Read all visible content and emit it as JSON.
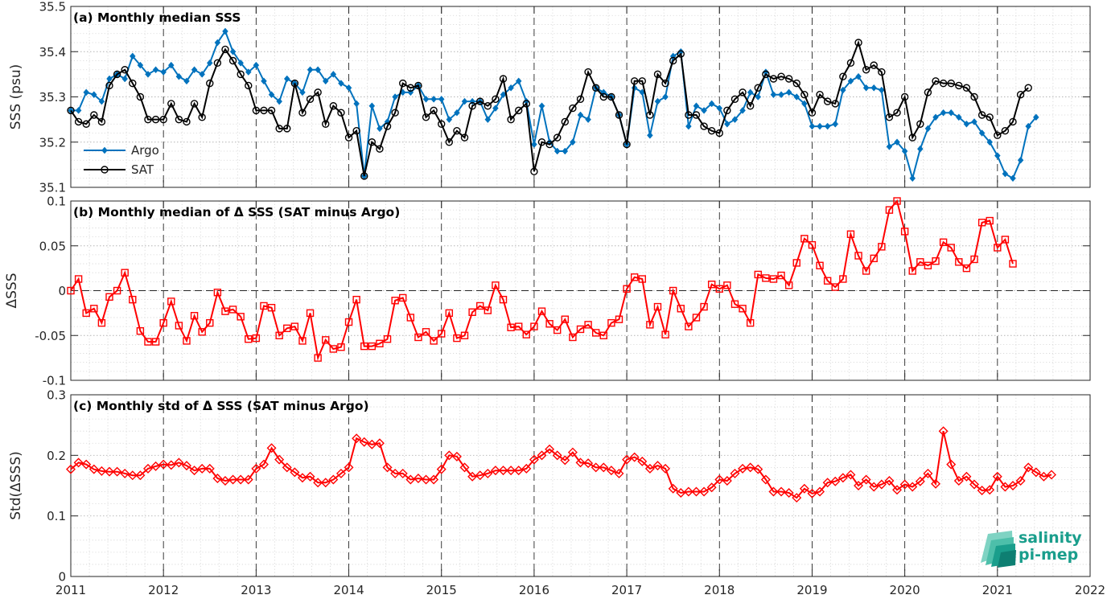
{
  "chart_data": [
    {
      "type": "line",
      "title": "(a) Monthly median SSS",
      "ylabel": "SSS (psu)",
      "ylim": [
        35.1,
        35.5
      ],
      "yticks": [
        35.1,
        35.2,
        35.3,
        35.4,
        35.5
      ],
      "xlim": [
        2011,
        2022
      ],
      "xticks": [
        2011,
        2012,
        2013,
        2014,
        2015,
        2016,
        2017,
        2018,
        2019,
        2020,
        2021,
        2022
      ],
      "grid": true,
      "legend_position": "middle-left",
      "x_start": 2011.0,
      "x_step": 0.0833333,
      "series": [
        {
          "name": "Argo",
          "color": "#0072BD",
          "marker": "diamond",
          "values": [
            35.27,
            35.27,
            35.31,
            35.305,
            35.29,
            35.34,
            35.35,
            35.34,
            35.39,
            35.37,
            35.35,
            35.36,
            35.355,
            35.37,
            35.345,
            35.335,
            35.36,
            35.35,
            35.375,
            35.42,
            35.445,
            35.4,
            35.375,
            35.355,
            35.37,
            35.335,
            35.305,
            35.29,
            35.34,
            35.33,
            35.31,
            35.36,
            35.36,
            35.335,
            35.35,
            35.33,
            35.32,
            35.285,
            35.125,
            35.28,
            35.23,
            35.245,
            35.3,
            35.31,
            35.31,
            35.325,
            35.295,
            35.295,
            35.295,
            35.25,
            35.265,
            35.29,
            35.29,
            35.29,
            35.25,
            35.275,
            35.305,
            35.32,
            35.335,
            35.29,
            35.195,
            35.28,
            35.2,
            35.18,
            35.18,
            35.2,
            35.26,
            35.25,
            35.32,
            35.31,
            35.3,
            35.26,
            35.195,
            35.32,
            35.31,
            35.215,
            35.29,
            35.3,
            35.39,
            35.4,
            35.235,
            35.28,
            35.27,
            35.285,
            35.275,
            35.24,
            35.25,
            35.27,
            35.31,
            35.3,
            35.355,
            35.305,
            35.305,
            35.31,
            35.3,
            35.285,
            35.235,
            35.235,
            35.235,
            35.24,
            35.315,
            35.335,
            35.345,
            35.32,
            35.32,
            35.315,
            35.19,
            35.2,
            35.18,
            35.12,
            35.185,
            35.23,
            35.255,
            35.265,
            35.265,
            35.255,
            35.24,
            35.245,
            35.22,
            35.2,
            35.17,
            35.13,
            35.12,
            35.16,
            35.235,
            35.255
          ]
        },
        {
          "name": "SAT",
          "color": "#000000",
          "marker": "circle",
          "values": [
            35.27,
            35.245,
            35.24,
            35.26,
            35.245,
            35.325,
            35.35,
            35.36,
            35.33,
            35.3,
            35.25,
            35.25,
            35.25,
            35.285,
            35.25,
            35.245,
            35.285,
            35.255,
            35.33,
            35.375,
            35.405,
            35.38,
            35.35,
            35.325,
            35.27,
            35.27,
            35.27,
            35.23,
            35.23,
            35.33,
            35.265,
            35.295,
            35.31,
            35.24,
            35.28,
            35.265,
            35.21,
            35.225,
            35.125,
            35.2,
            35.185,
            35.235,
            35.265,
            35.33,
            35.32,
            35.325,
            35.255,
            35.27,
            35.24,
            35.2,
            35.225,
            35.21,
            35.28,
            35.29,
            35.28,
            35.295,
            35.34,
            35.25,
            35.27,
            35.285,
            35.135,
            35.2,
            35.195,
            35.21,
            35.245,
            35.275,
            35.295,
            35.355,
            35.32,
            35.3,
            35.3,
            35.26,
            35.195,
            35.335,
            35.335,
            35.26,
            35.35,
            35.33,
            35.38,
            35.395,
            35.26,
            35.26,
            35.235,
            35.225,
            35.22,
            35.27,
            35.295,
            35.31,
            35.28,
            35.32,
            35.35,
            35.34,
            35.345,
            35.34,
            35.33,
            35.305,
            35.265,
            35.305,
            35.29,
            35.285,
            35.345,
            35.375,
            35.42,
            35.36,
            35.37,
            35.355,
            35.255,
            35.265,
            35.3,
            35.21,
            35.24,
            35.31,
            35.335,
            35.33,
            35.33,
            35.325,
            35.32,
            35.3,
            35.26,
            35.255,
            35.215,
            35.225,
            35.245,
            35.305,
            35.32
          ]
        }
      ]
    },
    {
      "type": "line",
      "title": "(b) Monthly median of Δ SSS (SAT minus Argo)",
      "ylabel": "ΔSSS",
      "ylim": [
        -0.1,
        0.1
      ],
      "yticks": [
        -0.1,
        -0.05,
        0,
        0.05,
        0.1
      ],
      "ytick_labels": [
        "-0.1",
        "-0.05",
        "0",
        "0.05",
        "0.1"
      ],
      "xlim": [
        2011,
        2022
      ],
      "grid": true,
      "zero_line": true,
      "x_start": 2011.0,
      "x_step": 0.0833333,
      "series": [
        {
          "color": "#FF0000",
          "marker": "square",
          "values": [
            0.0,
            0.013,
            -0.025,
            -0.02,
            -0.036,
            -0.007,
            0.0,
            0.02,
            -0.01,
            -0.045,
            -0.057,
            -0.057,
            -0.036,
            -0.012,
            -0.039,
            -0.056,
            -0.028,
            -0.046,
            -0.036,
            -0.002,
            -0.023,
            -0.021,
            -0.029,
            -0.054,
            -0.053,
            -0.017,
            -0.019,
            -0.05,
            -0.042,
            -0.04,
            -0.056,
            -0.025,
            -0.075,
            -0.055,
            -0.065,
            -0.063,
            -0.035,
            -0.01,
            -0.062,
            -0.062,
            -0.059,
            -0.054,
            -0.011,
            -0.008,
            -0.03,
            -0.052,
            -0.046,
            -0.056,
            -0.048,
            -0.025,
            -0.053,
            -0.05,
            -0.024,
            -0.017,
            -0.022,
            0.006,
            -0.01,
            -0.041,
            -0.04,
            -0.049,
            -0.04,
            -0.023,
            -0.037,
            -0.044,
            -0.032,
            -0.052,
            -0.043,
            -0.038,
            -0.047,
            -0.05,
            -0.036,
            -0.032,
            0.002,
            0.015,
            0.013,
            -0.038,
            -0.018,
            -0.049,
            0.0,
            -0.02,
            -0.04,
            -0.03,
            -0.018,
            0.007,
            0.002,
            0.006,
            -0.015,
            -0.02,
            -0.036,
            0.018,
            0.014,
            0.013,
            0.017,
            0.006,
            0.031,
            0.058,
            0.051,
            0.028,
            0.011,
            0.004,
            0.013,
            0.063,
            0.039,
            0.022,
            0.036,
            0.049,
            0.09,
            0.1,
            0.066,
            0.022,
            0.032,
            0.028,
            0.033,
            0.054,
            0.048,
            0.032,
            0.025,
            0.035,
            0.076,
            0.078,
            0.048,
            0.057,
            0.03
          ]
        }
      ]
    },
    {
      "type": "line",
      "title": "(c) Monthly std of Δ SSS (SAT minus Argo)",
      "ylabel": "Std(ΔSSS)",
      "ylim": [
        0,
        0.3
      ],
      "yticks": [
        0,
        0.1,
        0.2,
        0.3
      ],
      "ytick_labels": [
        "0",
        "0.1",
        "0.2",
        "0.3"
      ],
      "xlim": [
        2011,
        2022
      ],
      "grid": true,
      "x_start": 2011.0,
      "x_step": 0.0833333,
      "series": [
        {
          "color": "#FF0000",
          "marker": "diamond",
          "values": [
            0.177,
            0.188,
            0.185,
            0.177,
            0.174,
            0.173,
            0.173,
            0.17,
            0.167,
            0.167,
            0.178,
            0.182,
            0.185,
            0.184,
            0.188,
            0.183,
            0.175,
            0.178,
            0.178,
            0.162,
            0.158,
            0.16,
            0.16,
            0.16,
            0.178,
            0.185,
            0.212,
            0.193,
            0.18,
            0.172,
            0.163,
            0.165,
            0.155,
            0.155,
            0.16,
            0.17,
            0.18,
            0.228,
            0.222,
            0.218,
            0.22,
            0.18,
            0.17,
            0.17,
            0.16,
            0.162,
            0.16,
            0.16,
            0.177,
            0.2,
            0.198,
            0.18,
            0.165,
            0.167,
            0.17,
            0.175,
            0.175,
            0.175,
            0.175,
            0.178,
            0.193,
            0.2,
            0.21,
            0.2,
            0.192,
            0.205,
            0.188,
            0.187,
            0.18,
            0.18,
            0.175,
            0.17,
            0.193,
            0.197,
            0.19,
            0.178,
            0.183,
            0.178,
            0.145,
            0.138,
            0.14,
            0.14,
            0.14,
            0.147,
            0.16,
            0.158,
            0.17,
            0.178,
            0.18,
            0.177,
            0.16,
            0.14,
            0.14,
            0.138,
            0.13,
            0.145,
            0.137,
            0.14,
            0.155,
            0.157,
            0.163,
            0.168,
            0.15,
            0.16,
            0.148,
            0.152,
            0.158,
            0.143,
            0.152,
            0.148,
            0.157,
            0.17,
            0.153,
            0.24,
            0.185,
            0.158,
            0.165,
            0.152,
            0.142,
            0.143,
            0.165,
            0.148,
            0.15,
            0.158,
            0.18,
            0.172,
            0.165,
            0.168
          ]
        }
      ]
    }
  ],
  "logo": {
    "line1": "salinity",
    "line2": "pi-mep"
  }
}
